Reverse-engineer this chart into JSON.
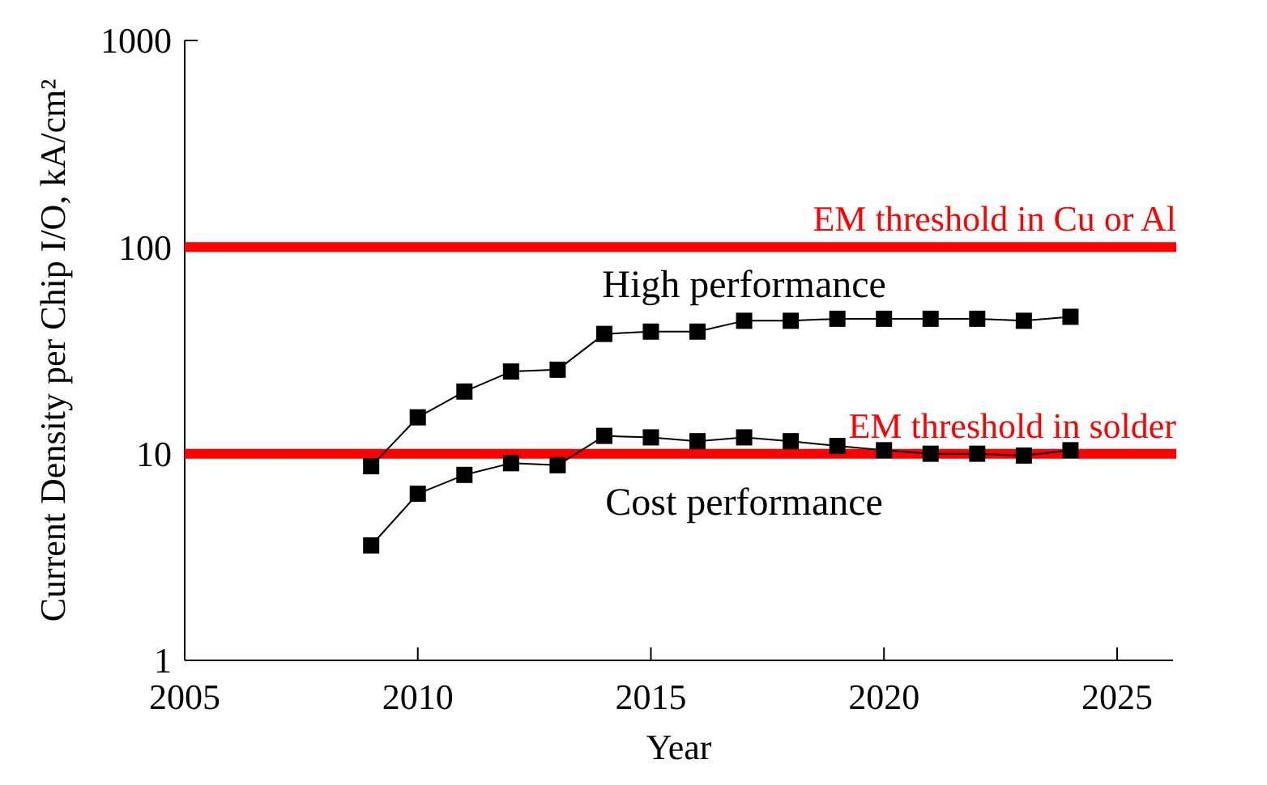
{
  "chart_data": {
    "type": "line",
    "xlabel": "Year",
    "ylabel": "Current Density per Chip I/O, kA/cm²",
    "log": "y",
    "xlim": [
      2005,
      2026.2
    ],
    "xticks": [
      2005,
      2010,
      2015,
      2020,
      2025
    ],
    "ylim": [
      1,
      1000
    ],
    "yticks": [
      1,
      10,
      100,
      1000
    ],
    "grid": false,
    "legend": false,
    "marker": "square",
    "line_style": "solid",
    "x": [
      2009,
      2010,
      2011,
      2012,
      2013,
      2014,
      2015,
      2016,
      2017,
      2018,
      2019,
      2020,
      2021,
      2022,
      2023,
      2024
    ],
    "series": [
      {
        "name": "High performance",
        "color": "#000000",
        "values": [
          8.7,
          15,
          20,
          25,
          25.5,
          38,
          39,
          39,
          44,
          44,
          45,
          45,
          45,
          45,
          44,
          46
        ]
      },
      {
        "name": "Cost performance",
        "color": "#000000",
        "values": [
          3.6,
          6.4,
          7.9,
          9,
          8.8,
          12.2,
          12,
          11.5,
          12,
          11.5,
          10.9,
          10.4,
          10,
          10,
          9.8,
          10.4
        ]
      }
    ],
    "ref_lines": [
      {
        "axis": "y",
        "value": 100,
        "label": "EM threshold in Cu or Al",
        "color": "#ff0000"
      },
      {
        "axis": "y",
        "value": 10,
        "label": "EM threshold in solder",
        "color": "#ff0000"
      }
    ]
  }
}
